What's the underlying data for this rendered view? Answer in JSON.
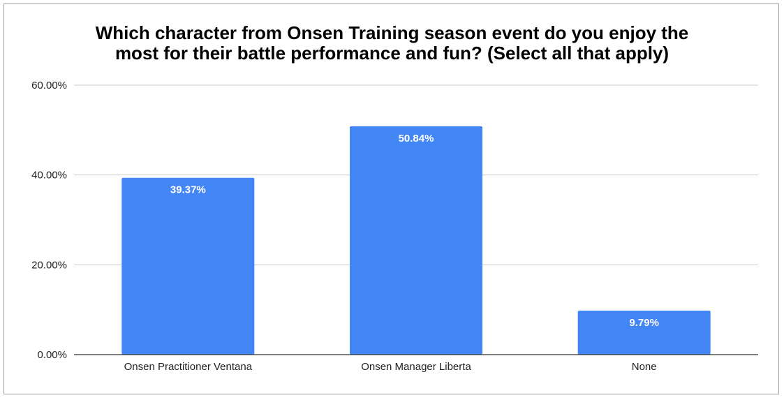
{
  "chart_data": {
    "type": "bar",
    "title_lines": [
      "Which character from Onsen Training season event do you enjoy the",
      "most for their battle performance and fun? (Select all that apply)"
    ],
    "categories": [
      "Onsen Practitioner Ventana",
      "Onsen Manager Liberta",
      "None"
    ],
    "values": [
      39.37,
      50.84,
      9.79
    ],
    "data_labels": [
      "39.37%",
      "50.84%",
      "9.79%"
    ],
    "y_ticks": [
      0,
      20,
      40,
      60
    ],
    "y_tick_labels": [
      "0.00%",
      "20.00%",
      "40.00%",
      "60.00%"
    ],
    "ylim": [
      0,
      60
    ],
    "grid": true,
    "legend": "none",
    "bar_color": "#4285f4",
    "gridline_color": "#cccccc",
    "axis_color": "#333333"
  }
}
